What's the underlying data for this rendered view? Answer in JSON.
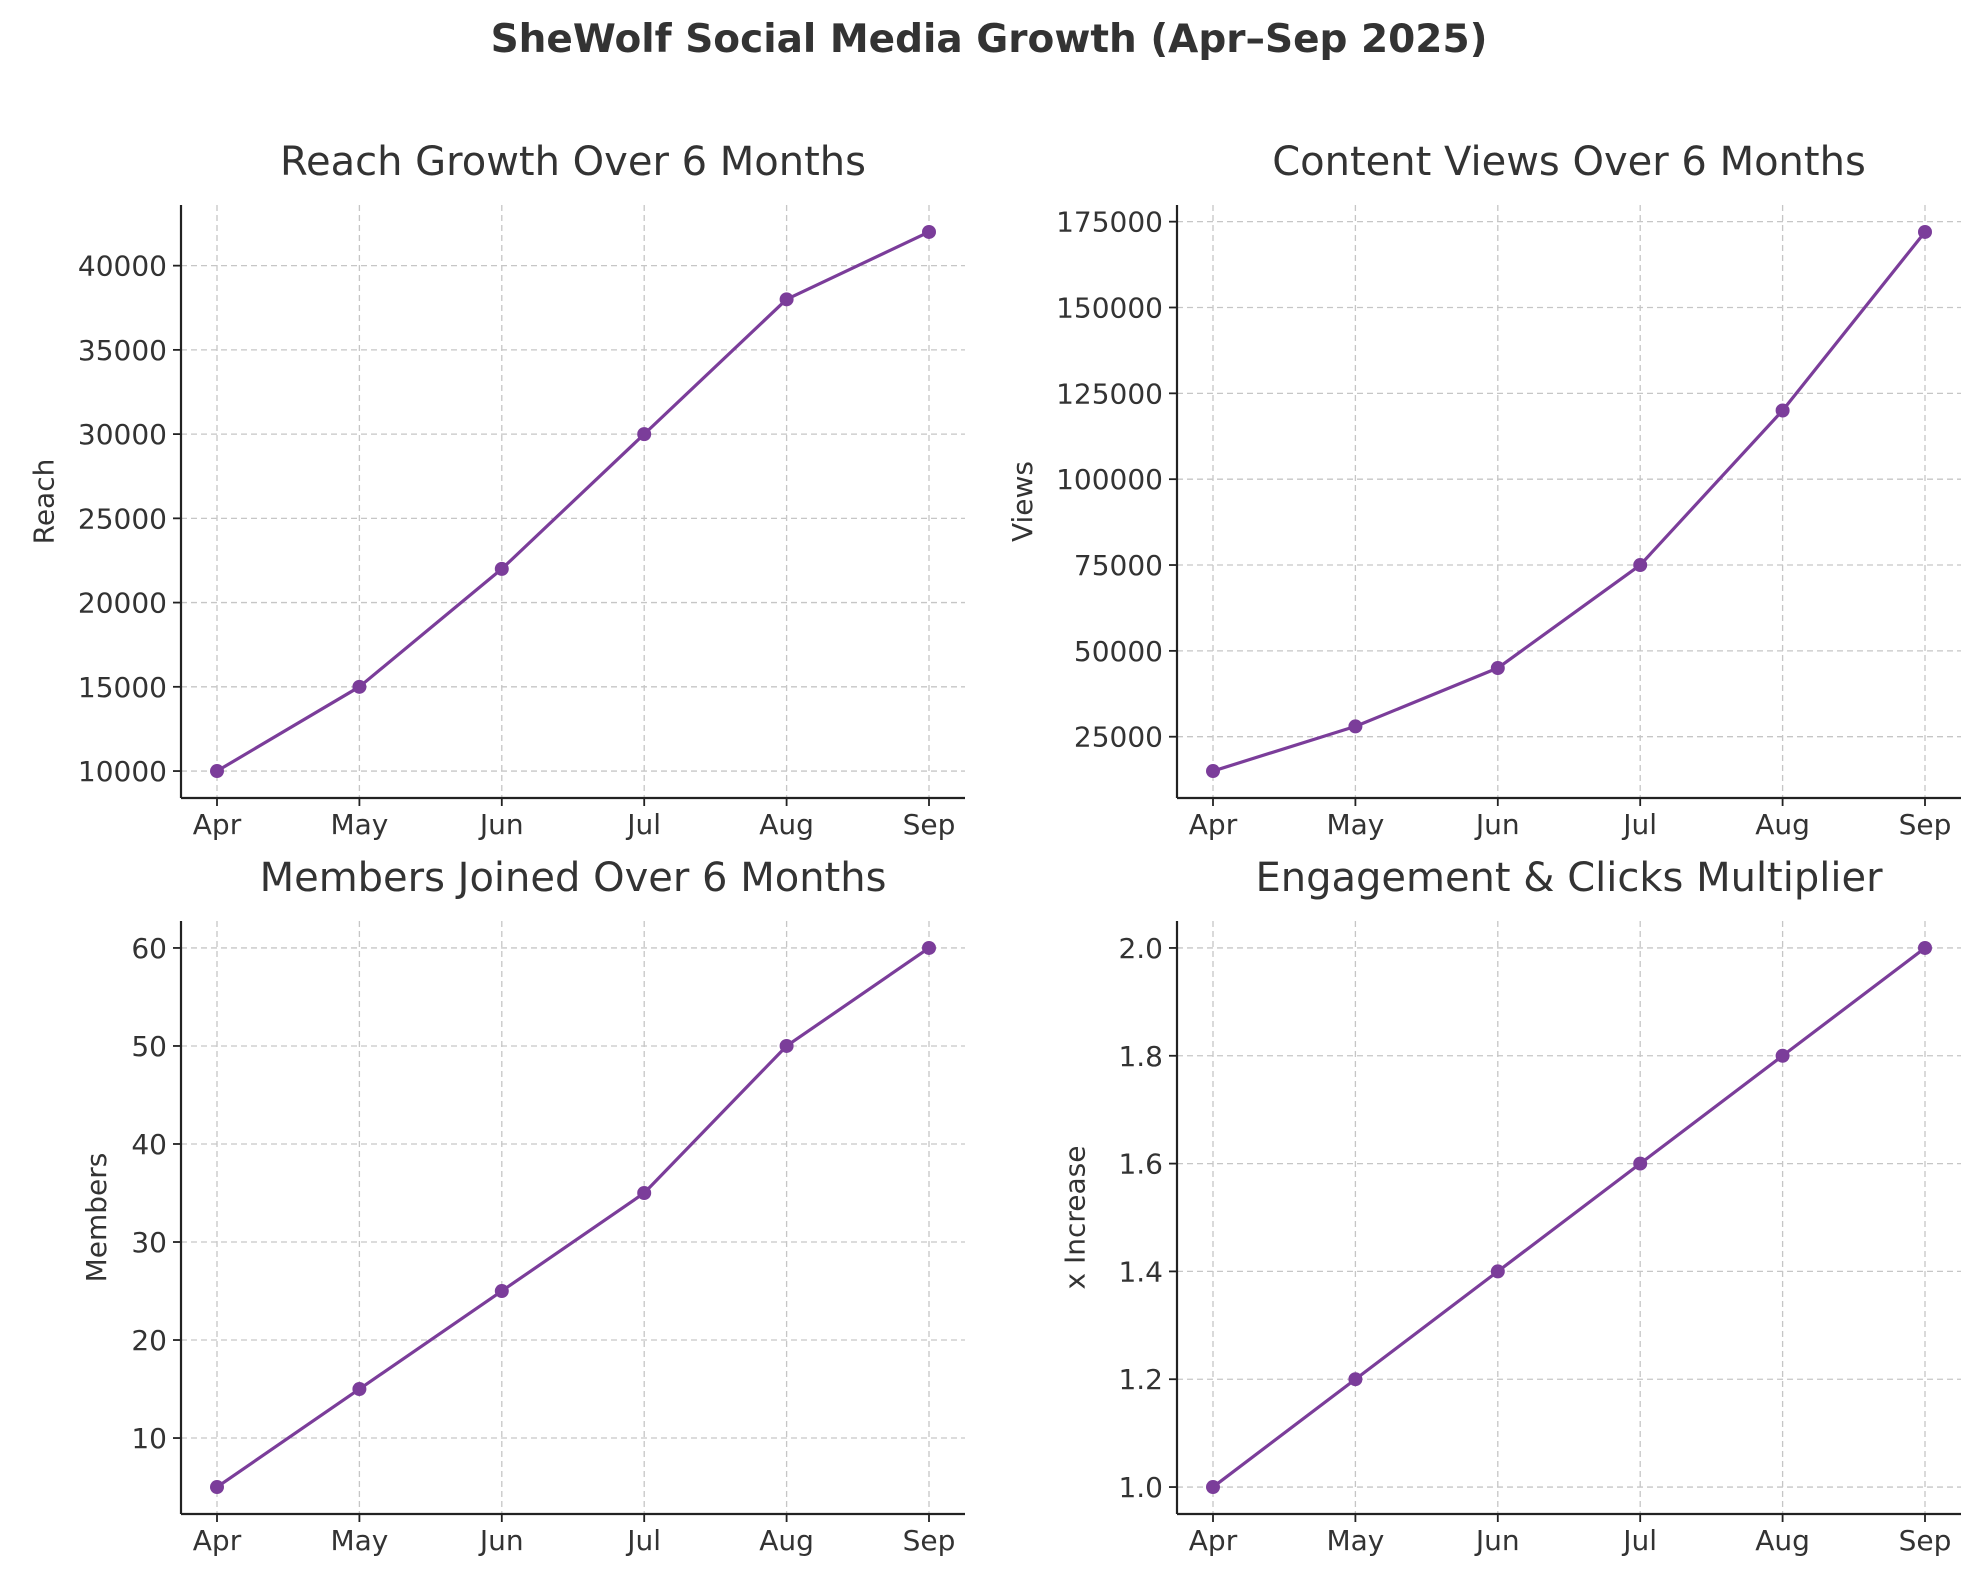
{
  "figure": {
    "title": "SheWolf Social Media Growth (Apr–Sep 2025)"
  },
  "colors": {
    "series": "#7b3d9a",
    "text": "#333333",
    "grid": "#c6c6c6"
  },
  "chart_data": [
    {
      "type": "line",
      "title": "Reach Growth Over 6 Months",
      "xlabel": "",
      "ylabel": "Reach",
      "categories": [
        "Apr",
        "May",
        "Jun",
        "Jul",
        "Aug",
        "Sep"
      ],
      "values": [
        10000,
        15000,
        22000,
        30000,
        38000,
        42000
      ],
      "ylim": [
        8400,
        43600
      ],
      "yticks": [
        10000,
        15000,
        20000,
        25000,
        30000,
        35000,
        40000
      ],
      "ytick_labels": [
        "10000",
        "15000",
        "20000",
        "25000",
        "30000",
        "35000",
        "40000"
      ],
      "grid": true,
      "marker": "circle"
    },
    {
      "type": "line",
      "title": "Content Views Over 6 Months",
      "xlabel": "",
      "ylabel": "Views",
      "categories": [
        "Apr",
        "May",
        "Jun",
        "Jul",
        "Aug",
        "Sep"
      ],
      "values": [
        15000,
        28000,
        45000,
        75000,
        120000,
        172000
      ],
      "ylim": [
        7150,
        179850
      ],
      "yticks": [
        25000,
        50000,
        75000,
        100000,
        125000,
        150000,
        175000
      ],
      "ytick_labels": [
        "25000",
        "50000",
        "75000",
        "100000",
        "125000",
        "150000",
        "175000"
      ],
      "grid": true,
      "marker": "circle"
    },
    {
      "type": "line",
      "title": "Members Joined Over 6 Months",
      "xlabel": "",
      "ylabel": "Members",
      "categories": [
        "Apr",
        "May",
        "Jun",
        "Jul",
        "Aug",
        "Sep"
      ],
      "values": [
        5,
        15,
        25,
        35,
        50,
        60
      ],
      "ylim": [
        2.25,
        62.75
      ],
      "yticks": [
        10,
        20,
        30,
        40,
        50,
        60
      ],
      "ytick_labels": [
        "10",
        "20",
        "30",
        "40",
        "50",
        "60"
      ],
      "grid": true,
      "marker": "circle"
    },
    {
      "type": "line",
      "title": "Engagement & Clicks Multiplier",
      "xlabel": "",
      "ylabel": "x Increase",
      "categories": [
        "Apr",
        "May",
        "Jun",
        "Jul",
        "Aug",
        "Sep"
      ],
      "values": [
        1.0,
        1.2,
        1.4,
        1.6,
        1.8,
        2.0
      ],
      "ylim": [
        0.95,
        2.05
      ],
      "yticks": [
        1.0,
        1.2,
        1.4,
        1.6,
        1.8,
        2.0
      ],
      "ytick_labels": [
        "1.0",
        "1.2",
        "1.4",
        "1.6",
        "1.8",
        "2.0"
      ],
      "grid": true,
      "marker": "circle"
    }
  ]
}
